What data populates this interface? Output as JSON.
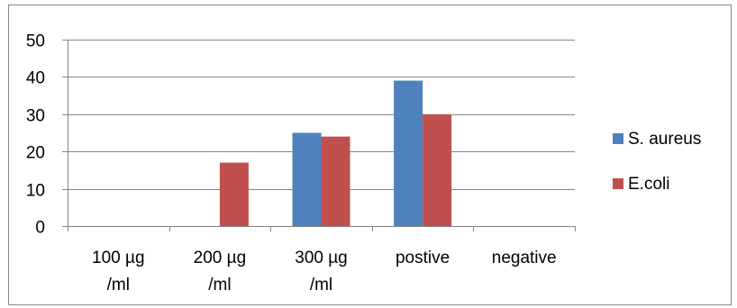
{
  "chart_data": {
    "type": "bar",
    "categories": [
      [
        "100 µg",
        "/ml"
      ],
      [
        "200 µg",
        "/ml"
      ],
      [
        "300 µg",
        "/ml"
      ],
      [
        "postive"
      ],
      [
        "negative"
      ]
    ],
    "series": [
      {
        "name": "S. aureus",
        "color": "#4f81bd",
        "values": [
          0,
          0,
          25,
          39,
          0
        ]
      },
      {
        "name": "E.coli",
        "color": "#c0504d",
        "values": [
          0,
          17,
          24,
          30,
          0
        ]
      }
    ],
    "ylim": [
      0,
      50
    ],
    "yticks": [
      "0",
      "10",
      "20",
      "30",
      "40",
      "50"
    ],
    "grid": true,
    "legend_position": "right"
  }
}
